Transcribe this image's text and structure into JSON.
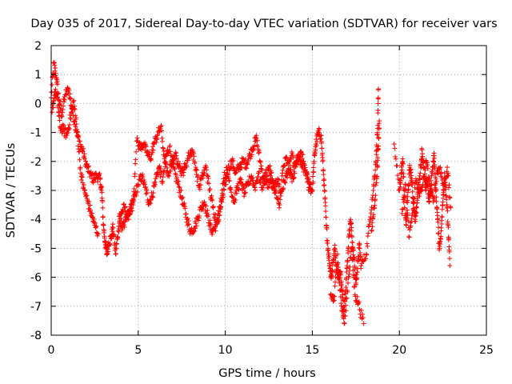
{
  "chart_data": {
    "type": "scatter",
    "title": "Day 035 of 2017, Sidereal Day-to-day VTEC variation (SDTVAR) for receiver vars",
    "xlabel": "GPS time / hours",
    "ylabel": "SDTVAR / TECUs",
    "xlim": [
      0,
      25
    ],
    "ylim": [
      -8,
      2
    ],
    "xticks": [
      0,
      5,
      10,
      15,
      20,
      25
    ],
    "yticks": [
      -8,
      -7,
      -6,
      -5,
      -4,
      -3,
      -2,
      -1,
      0,
      1,
      2
    ],
    "xtick_labels": [
      "0",
      "5",
      "10",
      "15",
      "20",
      "25"
    ],
    "ytick_labels": [
      "-8",
      "-7",
      "-6",
      "-5",
      "-4",
      "-3",
      "-2",
      "-1",
      "0",
      "1",
      "2"
    ],
    "grid": true,
    "marker": "+",
    "color": "#ff0000",
    "series": [
      {
        "name": "SDTVAR",
        "trace_a": [
          [
            0.0,
            0.2
          ],
          [
            0.15,
            1.4
          ],
          [
            0.3,
            0.9
          ],
          [
            0.45,
            0.1
          ],
          [
            0.6,
            -0.4
          ],
          [
            0.8,
            0.3
          ],
          [
            1.0,
            0.5
          ],
          [
            1.2,
            -0.2
          ],
          [
            1.4,
            -0.8
          ],
          [
            1.6,
            -1.3
          ],
          [
            1.8,
            -1.6
          ],
          [
            2.0,
            -2.1
          ],
          [
            2.2,
            -2.4
          ],
          [
            2.4,
            -2.6
          ],
          [
            2.6,
            -2.5
          ],
          [
            2.8,
            -2.6
          ],
          [
            2.9,
            -3.0
          ],
          [
            3.0,
            -4.2
          ],
          [
            3.1,
            -4.8
          ],
          [
            3.2,
            -5.2
          ],
          [
            3.3,
            -4.8
          ],
          [
            3.45,
            -4.6
          ],
          [
            3.55,
            -4.3
          ],
          [
            3.7,
            -5.2
          ],
          [
            3.85,
            -4.4
          ],
          [
            4.0,
            -3.8
          ],
          [
            4.2,
            -3.6
          ],
          [
            4.4,
            -3.9
          ],
          [
            4.6,
            -3.6
          ],
          [
            4.8,
            -3.2
          ],
          [
            5.0,
            -2.8
          ],
          [
            5.2,
            -2.5
          ],
          [
            5.4,
            -2.9
          ],
          [
            5.6,
            -3.4
          ],
          [
            5.8,
            -3.2
          ],
          [
            6.0,
            -2.6
          ],
          [
            6.2,
            -2.2
          ],
          [
            6.4,
            -2.7
          ],
          [
            6.6,
            -1.8
          ],
          [
            6.8,
            -1.5
          ],
          [
            7.0,
            -2.2
          ],
          [
            7.2,
            -2.6
          ],
          [
            7.4,
            -3.0
          ],
          [
            7.6,
            -3.5
          ],
          [
            7.8,
            -4.0
          ],
          [
            8.0,
            -4.4
          ],
          [
            8.2,
            -4.3
          ],
          [
            8.4,
            -4.0
          ],
          [
            8.6,
            -3.6
          ],
          [
            8.8,
            -3.4
          ],
          [
            9.0,
            -3.9
          ],
          [
            9.2,
            -4.4
          ],
          [
            9.4,
            -4.3
          ],
          [
            9.6,
            -4.0
          ],
          [
            9.8,
            -3.4
          ],
          [
            10.0,
            -2.8
          ],
          [
            10.2,
            -2.2
          ],
          [
            10.4,
            -2.0
          ],
          [
            10.6,
            -2.4
          ],
          [
            10.8,
            -2.2
          ],
          [
            11.0,
            -2.0
          ],
          [
            11.2,
            -2.1
          ],
          [
            11.4,
            -1.8
          ],
          [
            11.6,
            -1.5
          ],
          [
            11.8,
            -1.2
          ],
          [
            12.0,
            -2.0
          ],
          [
            12.2,
            -2.6
          ],
          [
            12.4,
            -2.8
          ],
          [
            12.6,
            -2.7
          ],
          [
            12.8,
            -3.0
          ],
          [
            13.0,
            -2.6
          ],
          [
            13.2,
            -3.1
          ],
          [
            13.4,
            -2.7
          ],
          [
            13.6,
            -2.3
          ],
          [
            13.8,
            -1.8
          ],
          [
            14.0,
            -2.2
          ],
          [
            14.2,
            -1.8
          ],
          [
            14.4,
            -2.2
          ],
          [
            14.6,
            -2.3
          ],
          [
            14.8,
            -2.9
          ],
          [
            15.0,
            -3.0
          ],
          [
            15.1,
            -2.0
          ],
          [
            15.2,
            -1.4
          ],
          [
            15.35,
            -1.0
          ],
          [
            15.5,
            -1.1
          ],
          [
            15.6,
            -2.0
          ],
          [
            15.7,
            -3.0
          ],
          [
            15.8,
            -4.2
          ],
          [
            15.9,
            -5.0
          ],
          [
            16.0,
            -5.6
          ],
          [
            16.1,
            -6.0
          ],
          [
            16.2,
            -5.4
          ],
          [
            16.3,
            -5.0
          ],
          [
            16.4,
            -5.6
          ],
          [
            16.5,
            -6.0
          ],
          [
            16.6,
            -5.8
          ],
          [
            16.7,
            -6.4
          ],
          [
            16.8,
            -7.2
          ],
          [
            16.9,
            -6.5
          ],
          [
            17.0,
            -5.6
          ],
          [
            17.1,
            -4.6
          ],
          [
            17.2,
            -4.0
          ],
          [
            17.3,
            -4.8
          ],
          [
            17.4,
            -5.4
          ],
          [
            17.5,
            -6.2
          ],
          [
            17.6,
            -5.7
          ],
          [
            17.7,
            -4.9
          ],
          [
            17.8,
            -5.6
          ],
          [
            18.1,
            -5.2
          ],
          [
            18.3,
            -4.0
          ],
          [
            18.5,
            -3.0
          ],
          [
            18.65,
            -2.0
          ],
          [
            18.75,
            -1.0
          ],
          [
            18.8,
            0.5
          ]
        ],
        "trace_b": [
          [
            0.05,
            -0.3
          ],
          [
            0.2,
            0.4
          ],
          [
            0.35,
            0.2
          ],
          [
            0.5,
            -0.8
          ],
          [
            0.7,
            -0.9
          ],
          [
            0.9,
            -1.1
          ],
          [
            1.1,
            -0.5
          ],
          [
            1.3,
            0.1
          ],
          [
            1.5,
            -1.0
          ],
          [
            1.7,
            -2.4
          ],
          [
            1.9,
            -3.0
          ],
          [
            2.1,
            -3.4
          ],
          [
            2.3,
            -3.8
          ],
          [
            2.5,
            -4.2
          ],
          [
            2.7,
            -4.5
          ],
          [
            3.9,
            -3.9
          ],
          [
            4.1,
            -4.3
          ],
          [
            4.3,
            -4.0
          ],
          [
            4.5,
            -3.7
          ],
          [
            4.7,
            -3.5
          ],
          [
            4.9,
            -1.3
          ],
          [
            5.1,
            -1.5
          ],
          [
            5.3,
            -1.4
          ],
          [
            5.5,
            -1.7
          ],
          [
            5.7,
            -1.9
          ],
          [
            5.9,
            -1.4
          ],
          [
            6.1,
            -1.1
          ],
          [
            6.3,
            -0.8
          ],
          [
            6.5,
            -1.9
          ],
          [
            6.7,
            -2.5
          ],
          [
            6.9,
            -2.1
          ],
          [
            7.1,
            -1.8
          ],
          [
            7.3,
            -2.0
          ],
          [
            7.5,
            -2.4
          ],
          [
            7.7,
            -2.2
          ],
          [
            7.9,
            -1.8
          ],
          [
            8.1,
            -1.6
          ],
          [
            8.3,
            -2.2
          ],
          [
            8.5,
            -2.9
          ],
          [
            8.7,
            -2.5
          ],
          [
            8.9,
            -2.2
          ],
          [
            9.1,
            -3.0
          ],
          [
            9.3,
            -3.6
          ],
          [
            9.5,
            -4.1
          ],
          [
            9.7,
            -3.6
          ],
          [
            9.9,
            -2.6
          ],
          [
            10.1,
            -2.3
          ],
          [
            10.3,
            -2.9
          ],
          [
            10.5,
            -3.4
          ],
          [
            10.7,
            -2.9
          ],
          [
            10.9,
            -2.7
          ],
          [
            11.1,
            -3.1
          ],
          [
            11.3,
            -2.8
          ],
          [
            11.5,
            -2.5
          ],
          [
            11.7,
            -2.9
          ],
          [
            11.9,
            -2.4
          ],
          [
            12.1,
            -2.9
          ],
          [
            12.3,
            -2.5
          ],
          [
            12.5,
            -2.2
          ],
          [
            12.7,
            -2.6
          ],
          [
            12.9,
            -3.1
          ],
          [
            13.1,
            -3.6
          ],
          [
            13.3,
            -2.3
          ],
          [
            13.5,
            -1.9
          ],
          [
            13.7,
            -2.4
          ],
          [
            13.9,
            -2.6
          ],
          [
            14.1,
            -2.0
          ],
          [
            14.3,
            -1.7
          ],
          [
            14.5,
            -2.0
          ],
          [
            14.7,
            -2.6
          ],
          [
            14.9,
            -2.8
          ],
          [
            16.05,
            -6.6
          ],
          [
            16.25,
            -6.8
          ],
          [
            16.45,
            -5.2
          ],
          [
            16.65,
            -6.9
          ],
          [
            16.85,
            -7.6
          ],
          [
            17.05,
            -6.2
          ],
          [
            17.25,
            -5.0
          ],
          [
            17.45,
            -6.6
          ],
          [
            17.65,
            -6.9
          ],
          [
            17.95,
            -7.6
          ]
        ],
        "trace_c": [
          [
            18.4,
            -4.4
          ],
          [
            18.55,
            -3.6
          ],
          [
            18.7,
            -2.6
          ],
          [
            18.78,
            -1.6
          ],
          [
            18.85,
            -0.6
          ],
          [
            19.7,
            -1.4
          ],
          [
            20.0,
            -3.0
          ],
          [
            20.1,
            -2.4
          ],
          [
            20.2,
            -2.0
          ],
          [
            20.3,
            -3.6
          ],
          [
            20.4,
            -4.2
          ],
          [
            20.5,
            -3.0
          ],
          [
            20.6,
            -2.2
          ],
          [
            20.7,
            -2.6
          ],
          [
            20.8,
            -3.4
          ],
          [
            20.9,
            -4.0
          ],
          [
            21.0,
            -3.6
          ],
          [
            21.1,
            -2.8
          ],
          [
            21.2,
            -2.4
          ],
          [
            21.3,
            -1.6
          ],
          [
            21.4,
            -2.2
          ],
          [
            21.5,
            -3.0
          ],
          [
            21.6,
            -2.6
          ],
          [
            21.7,
            -3.4
          ],
          [
            21.8,
            -3.0
          ],
          [
            21.9,
            -2.2
          ],
          [
            22.0,
            -1.8
          ],
          [
            22.1,
            -3.0
          ],
          [
            22.2,
            -4.0
          ],
          [
            22.3,
            -5.0
          ],
          [
            22.4,
            -4.4
          ],
          [
            22.5,
            -3.4
          ],
          [
            22.6,
            -2.4
          ],
          [
            22.7,
            -3.2
          ],
          [
            22.8,
            -4.2
          ],
          [
            22.9,
            -5.6
          ],
          [
            20.15,
            -3.8
          ],
          [
            20.35,
            -2.8
          ],
          [
            20.55,
            -4.6
          ],
          [
            20.75,
            -3.8
          ],
          [
            20.95,
            -2.6
          ],
          [
            21.15,
            -3.2
          ],
          [
            21.35,
            -2.8
          ],
          [
            21.55,
            -2.0
          ],
          [
            21.75,
            -2.8
          ],
          [
            21.95,
            -3.4
          ],
          [
            22.15,
            -2.4
          ],
          [
            22.35,
            -2.2
          ],
          [
            22.55,
            -3.0
          ],
          [
            22.75,
            -2.2
          ],
          [
            22.95,
            -3.6
          ]
        ]
      }
    ]
  }
}
